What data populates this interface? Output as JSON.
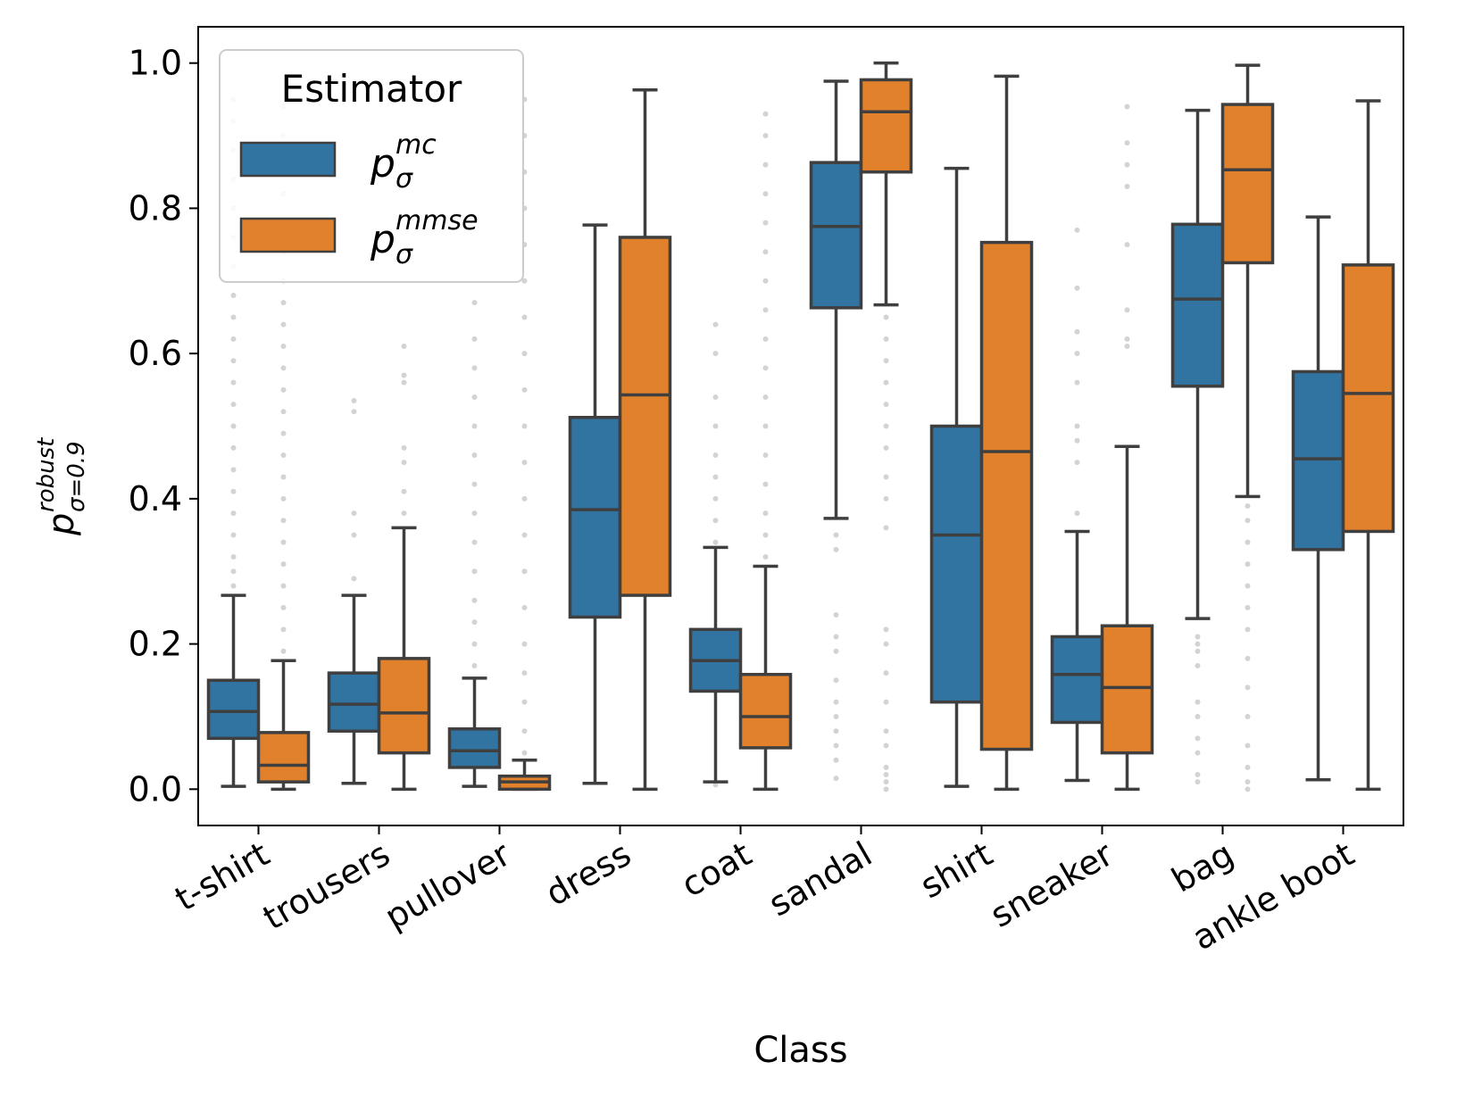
{
  "chart_data": {
    "type": "box",
    "xlabel": "Class",
    "ylabel": {
      "symbol": "p",
      "superscript": "robust",
      "subscript": "σ=0.9"
    },
    "ylim": [
      -0.05,
      1.05
    ],
    "yticks": [
      0.0,
      0.2,
      0.4,
      0.6,
      0.8,
      1.0
    ],
    "ytick_labels": [
      "0.0",
      "0.2",
      "0.4",
      "0.6",
      "0.8",
      "1.0"
    ],
    "categories": [
      "t-shirt",
      "trousers",
      "pullover",
      "dress",
      "coat",
      "sandal",
      "shirt",
      "sneaker",
      "bag",
      "ankle boot"
    ],
    "legend": {
      "title": "Estimator",
      "position": "top-left",
      "entries": [
        {
          "symbol": "p",
          "superscript": "mc",
          "subscript": "σ"
        },
        {
          "symbol": "p",
          "superscript": "mmse",
          "subscript": "σ"
        }
      ]
    },
    "series": [
      {
        "name": "mc",
        "color": "#3274a1",
        "boxes": [
          {
            "q1": 0.07,
            "median": 0.107,
            "q3": 0.15,
            "whislo": 0.004,
            "whishi": 0.267
          },
          {
            "q1": 0.08,
            "median": 0.117,
            "q3": 0.16,
            "whislo": 0.008,
            "whishi": 0.267
          },
          {
            "q1": 0.03,
            "median": 0.053,
            "q3": 0.083,
            "whislo": 0.004,
            "whishi": 0.153
          },
          {
            "q1": 0.237,
            "median": 0.385,
            "q3": 0.512,
            "whislo": 0.008,
            "whishi": 0.777
          },
          {
            "q1": 0.135,
            "median": 0.177,
            "q3": 0.22,
            "whislo": 0.01,
            "whishi": 0.333
          },
          {
            "q1": 0.663,
            "median": 0.775,
            "q3": 0.863,
            "whislo": 0.373,
            "whishi": 0.975
          },
          {
            "q1": 0.12,
            "median": 0.35,
            "q3": 0.5,
            "whislo": 0.004,
            "whishi": 0.855
          },
          {
            "q1": 0.092,
            "median": 0.158,
            "q3": 0.21,
            "whislo": 0.012,
            "whishi": 0.355
          },
          {
            "q1": 0.555,
            "median": 0.675,
            "q3": 0.778,
            "whislo": 0.235,
            "whishi": 0.935
          },
          {
            "q1": 0.33,
            "median": 0.455,
            "q3": 0.575,
            "whislo": 0.013,
            "whishi": 0.788
          }
        ],
        "fliers": [
          [
            0.28,
            0.3,
            0.32,
            0.35,
            0.38,
            0.41,
            0.44,
            0.47,
            0.5,
            0.53,
            0.56,
            0.59,
            0.62,
            0.65,
            0.68,
            0.72,
            0.76,
            0.8,
            0.84,
            0.88,
            0.92,
            0.95
          ],
          [
            0.29,
            0.35,
            0.38,
            0.52,
            0.535
          ],
          [
            0.17,
            0.2,
            0.23,
            0.26,
            0.3,
            0.34,
            0.38,
            0.42,
            0.46,
            0.5,
            0.54,
            0.58,
            0.62,
            0.67
          ],
          [],
          [
            0.006,
            0.34,
            0.37,
            0.4,
            0.43,
            0.46,
            0.5,
            0.54,
            0.6,
            0.64
          ],
          [
            0.015,
            0.04,
            0.06,
            0.08,
            0.1,
            0.12,
            0.15,
            0.19,
            0.21,
            0.24,
            0.33,
            0.35
          ],
          [],
          [
            0.38,
            0.45,
            0.48,
            0.5,
            0.56,
            0.6,
            0.63,
            0.69,
            0.77
          ],
          [
            0.01,
            0.02,
            0.05,
            0.07,
            0.1,
            0.12,
            0.17,
            0.19,
            0.2,
            0.21
          ],
          []
        ]
      },
      {
        "name": "mmse",
        "color": "#e1812c",
        "boxes": [
          {
            "q1": 0.01,
            "median": 0.033,
            "q3": 0.078,
            "whislo": 0.0,
            "whishi": 0.177
          },
          {
            "q1": 0.05,
            "median": 0.105,
            "q3": 0.18,
            "whislo": 0.0,
            "whishi": 0.36
          },
          {
            "q1": 0.0,
            "median": 0.01,
            "q3": 0.018,
            "whislo": 0.0,
            "whishi": 0.04
          },
          {
            "q1": 0.267,
            "median": 0.543,
            "q3": 0.76,
            "whislo": 0.0,
            "whishi": 0.963
          },
          {
            "q1": 0.057,
            "median": 0.1,
            "q3": 0.158,
            "whislo": 0.0,
            "whishi": 0.307
          },
          {
            "q1": 0.85,
            "median": 0.933,
            "q3": 0.977,
            "whislo": 0.667,
            "whishi": 1.0
          },
          {
            "q1": 0.055,
            "median": 0.465,
            "q3": 0.753,
            "whislo": 0.0,
            "whishi": 0.982
          },
          {
            "q1": 0.05,
            "median": 0.14,
            "q3": 0.225,
            "whislo": 0.0,
            "whishi": 0.472
          },
          {
            "q1": 0.725,
            "median": 0.853,
            "q3": 0.943,
            "whislo": 0.403,
            "whishi": 0.997
          },
          {
            "q1": 0.355,
            "median": 0.545,
            "q3": 0.722,
            "whislo": 0.0,
            "whishi": 0.948
          }
        ],
        "fliers": [
          [
            0.19,
            0.22,
            0.25,
            0.28,
            0.31,
            0.34,
            0.37,
            0.4,
            0.43,
            0.46,
            0.49,
            0.52,
            0.55,
            0.58,
            0.61,
            0.64,
            0.67,
            0.7,
            0.74,
            0.78,
            0.82,
            0.86,
            0.9,
            0.94
          ],
          [
            0.38,
            0.41,
            0.45,
            0.47,
            0.56,
            0.57,
            0.61
          ],
          [
            0.05,
            0.08,
            0.12,
            0.16,
            0.2,
            0.25,
            0.3,
            0.35,
            0.4,
            0.45,
            0.5,
            0.55,
            0.6,
            0.65,
            0.7,
            0.75,
            0.8,
            0.85,
            0.9,
            0.95
          ],
          [],
          [
            0.32,
            0.35,
            0.38,
            0.42,
            0.46,
            0.5,
            0.54,
            0.58,
            0.62,
            0.66,
            0.7,
            0.74,
            0.78,
            0.82,
            0.86,
            0.9,
            0.93
          ],
          [
            0.0,
            0.01,
            0.02,
            0.03,
            0.06,
            0.08,
            0.12,
            0.16,
            0.2,
            0.22,
            0.36,
            0.4,
            0.43,
            0.47,
            0.5,
            0.53,
            0.56,
            0.59,
            0.62,
            0.65
          ],
          [],
          [
            0.61,
            0.62,
            0.66,
            0.75,
            0.83,
            0.86,
            0.89,
            0.94
          ],
          [
            0.0,
            0.01,
            0.03,
            0.06,
            0.1,
            0.14,
            0.18,
            0.22,
            0.25,
            0.28,
            0.31,
            0.34,
            0.37,
            0.39
          ],
          []
        ]
      }
    ]
  }
}
